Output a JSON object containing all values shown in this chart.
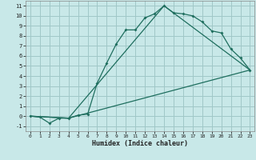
{
  "xlabel": "Humidex (Indice chaleur)",
  "background_color": "#c8e8e8",
  "grid_color": "#a0c8c8",
  "line_color": "#1e6e5e",
  "xlim": [
    -0.5,
    23.5
  ],
  "ylim": [
    -1.5,
    11.5
  ],
  "xticks": [
    0,
    1,
    2,
    3,
    4,
    5,
    6,
    7,
    8,
    9,
    10,
    11,
    12,
    13,
    14,
    15,
    16,
    17,
    18,
    19,
    20,
    21,
    22,
    23
  ],
  "yticks": [
    -1,
    0,
    1,
    2,
    3,
    4,
    5,
    6,
    7,
    8,
    9,
    10,
    11
  ],
  "line1_x": [
    0,
    1,
    2,
    3,
    4,
    5,
    6,
    7,
    8,
    9,
    10,
    11,
    12,
    13,
    14,
    15,
    16,
    17,
    18,
    19,
    20,
    21,
    22,
    23
  ],
  "line1_y": [
    0.0,
    -0.1,
    -0.7,
    -0.2,
    -0.2,
    0.1,
    0.2,
    3.3,
    5.3,
    7.2,
    8.6,
    8.6,
    9.8,
    10.2,
    11.0,
    10.3,
    10.2,
    10.0,
    9.4,
    8.5,
    8.3,
    6.7,
    5.8,
    4.6
  ],
  "line2_x": [
    0,
    4,
    23
  ],
  "line2_y": [
    0.0,
    -0.2,
    4.6
  ],
  "line3_x": [
    0,
    4,
    14,
    23
  ],
  "line3_y": [
    0.0,
    -0.2,
    11.0,
    4.6
  ]
}
